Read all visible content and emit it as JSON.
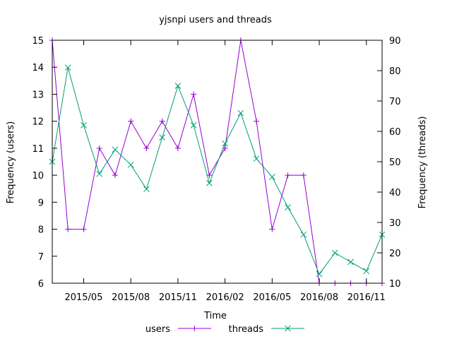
{
  "chart_data": {
    "type": "line",
    "title": "yjsnpi users and threads",
    "xlabel": "Time",
    "ylabel": "Frequency (users)",
    "y2label": "Frequency (threads)",
    "x": [
      "2015-03",
      "2015-04",
      "2015-05",
      "2015-06",
      "2015-07",
      "2015-08",
      "2015-09",
      "2015-10",
      "2015-11",
      "2015-12",
      "2016-01",
      "2016-02",
      "2016-03",
      "2016-04",
      "2016-05",
      "2016-06",
      "2016-07",
      "2016-08",
      "2016-09",
      "2016-10",
      "2016-11",
      "2016-12"
    ],
    "xlim": [
      "2015-03",
      "2016-12"
    ],
    "xticks": [
      "2015/05",
      "2015/08",
      "2015/11",
      "2016/02",
      "2016/05",
      "2016/08",
      "2016/11"
    ],
    "ylim": [
      6,
      15
    ],
    "yticks": [
      "6",
      "7",
      "8",
      "9",
      "10",
      "11",
      "12",
      "13",
      "14",
      "15"
    ],
    "y2lim": [
      10,
      90
    ],
    "y2ticks": [
      "10",
      "20",
      "30",
      "40",
      "50",
      "60",
      "70",
      "80",
      "90"
    ],
    "legend_position": "bottom",
    "grid": false,
    "series": [
      {
        "name": "users",
        "axis": "left",
        "color": "#9400d3",
        "marker": "plus",
        "values": [
          15,
          8,
          8,
          11,
          10,
          12,
          11,
          12,
          11,
          13,
          10,
          11,
          15,
          12,
          8,
          10,
          10,
          6,
          6,
          6,
          6,
          6
        ]
      },
      {
        "name": "threads",
        "axis": "right",
        "color": "#009e73",
        "marker": "cross",
        "values": [
          50,
          81,
          62,
          46,
          54,
          49,
          41,
          58,
          75,
          62,
          43,
          56,
          66,
          51,
          45,
          35,
          26,
          13,
          20,
          17,
          14,
          26
        ]
      }
    ]
  }
}
